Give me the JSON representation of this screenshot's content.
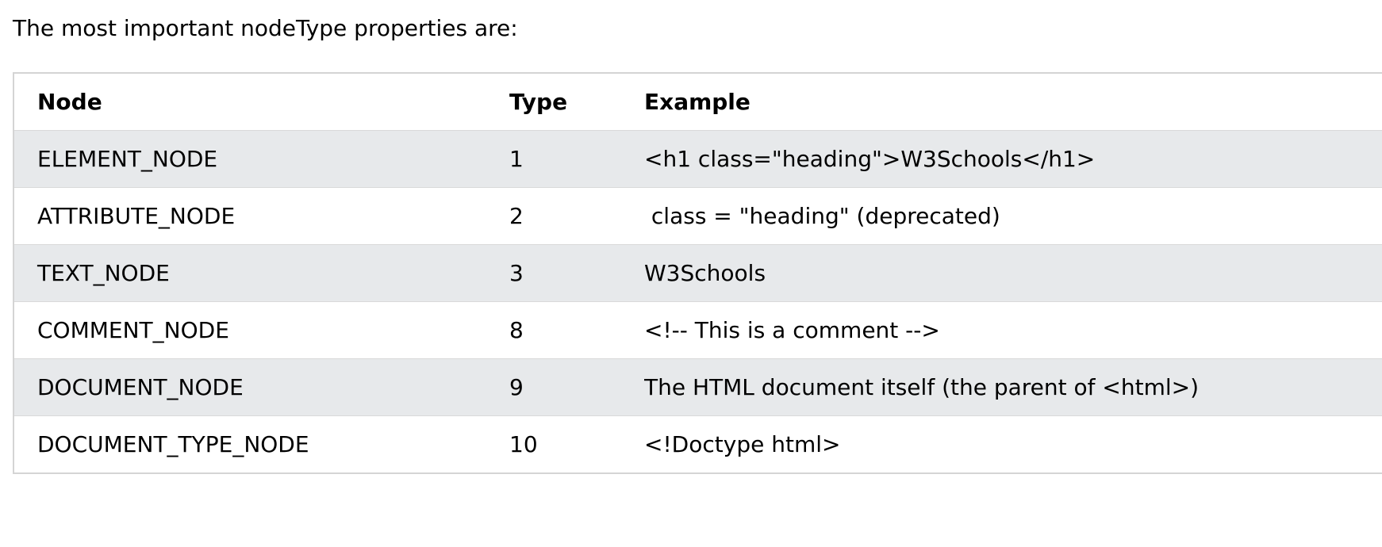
{
  "intro": "The most important nodeType properties are:",
  "table": {
    "headers": {
      "node": "Node",
      "type": "Type",
      "example": "Example"
    },
    "rows": [
      {
        "node": "ELEMENT_NODE",
        "type": "1",
        "example": "<h1 class=\"heading\">W3Schools</h1>"
      },
      {
        "node": "ATTRIBUTE_NODE",
        "type": "2",
        "example": " class = \"heading\" (deprecated)"
      },
      {
        "node": "TEXT_NODE",
        "type": "3",
        "example": "W3Schools"
      },
      {
        "node": "COMMENT_NODE",
        "type": "8",
        "example": "<!-- This is a comment -->"
      },
      {
        "node": "DOCUMENT_NODE",
        "type": "9",
        "example": "The HTML document itself (the parent of <html>)"
      },
      {
        "node": "DOCUMENT_TYPE_NODE",
        "type": "10",
        "example": "<!Doctype html>"
      }
    ]
  },
  "colors": {
    "alt_row": "#e7e9eb",
    "border": "#d4d4d4"
  }
}
